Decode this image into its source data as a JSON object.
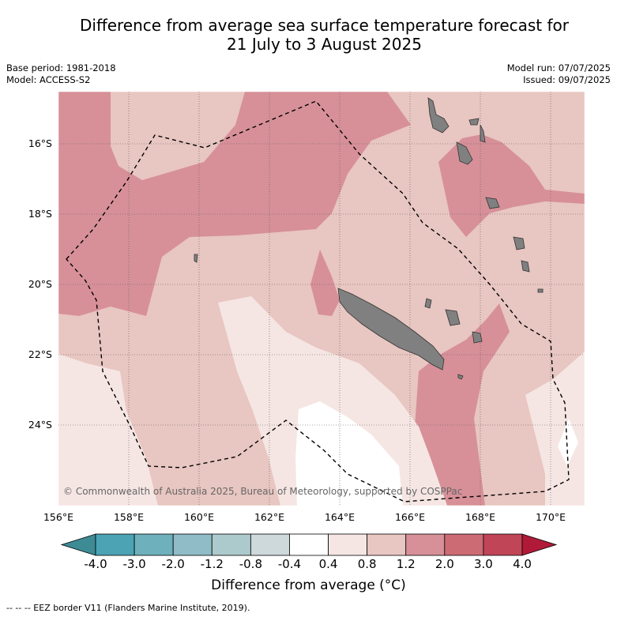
{
  "title_line1": "Difference from average sea surface temperature forecast for",
  "title_line2": "21 July to 3 August 2025",
  "base_period": "Base period: 1981-2018",
  "model": "Model: ACCESS-S2",
  "model_run": "Model run: 07/07/2025",
  "issued": "Issued: 09/07/2025",
  "copyright": "© Commonwealth of Australia 2025, Bureau of Meteorology, supported by COSPPac",
  "lon_labels": [
    "156°E",
    "158°E",
    "160°E",
    "162°E",
    "164°E",
    "166°E",
    "168°E",
    "170°E"
  ],
  "lat_labels": [
    "16°S",
    "18°S",
    "20°S",
    "22°S",
    "24°S"
  ],
  "colorbar": {
    "title": "Difference from average (°C)",
    "tick_labels": [
      "-4.0",
      "-3.0",
      "-2.0",
      "-1.2",
      "-0.8",
      "-0.4",
      "0.4",
      "0.8",
      "1.2",
      "2.0",
      "3.0",
      "4.0"
    ],
    "colors": [
      "#4ba3b3",
      "#6eb0bc",
      "#8fbcc6",
      "#acc9cc",
      "#cdd9da",
      "#ffffff",
      "#f5e6e4",
      "#e8c6c1",
      "#d79098",
      "#cd6b75",
      "#c04556"
    ],
    "under_color": "#3d8b95",
    "over_color": "#b01a38"
  },
  "legend_note": "--  --  -- EEZ border V11 (Flanders Marine Institute, 2019)."
}
